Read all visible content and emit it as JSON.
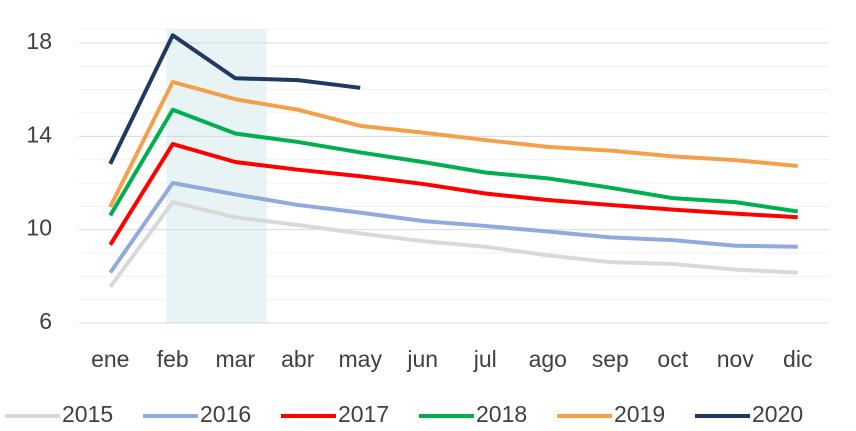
{
  "chart_data": {
    "type": "line",
    "categories": [
      "ene",
      "feb",
      "mar",
      "abr",
      "may",
      "jun",
      "jul",
      "ago",
      "sep",
      "oct",
      "nov",
      "dic"
    ],
    "series": [
      {
        "name": "2015",
        "color": "#d9d9d9",
        "values": [
          7.55,
          11.18,
          10.53,
          10.2,
          9.84,
          9.51,
          9.27,
          8.9,
          8.61,
          8.53,
          8.29,
          8.16
        ]
      },
      {
        "name": "2016",
        "color": "#8faadc",
        "values": [
          8.16,
          12.0,
          11.51,
          11.06,
          10.73,
          10.37,
          10.16,
          9.92,
          9.67,
          9.55,
          9.31,
          9.27
        ]
      },
      {
        "name": "2017",
        "color": "#ff0000",
        "values": [
          9.35,
          13.67,
          12.9,
          12.57,
          12.29,
          11.96,
          11.55,
          11.27,
          11.06,
          10.86,
          10.69,
          10.53
        ]
      },
      {
        "name": "2018",
        "color": "#00b050",
        "values": [
          10.61,
          15.14,
          14.12,
          13.76,
          13.31,
          12.9,
          12.45,
          12.2,
          11.8,
          11.35,
          11.18,
          10.78
        ]
      },
      {
        "name": "2019",
        "color": "#f4a04a",
        "values": [
          10.98,
          16.33,
          15.59,
          15.14,
          14.45,
          14.16,
          13.84,
          13.55,
          13.39,
          13.14,
          12.98,
          12.73
        ]
      },
      {
        "name": "2020",
        "color": "#203864",
        "values": [
          12.82,
          18.33,
          16.49,
          16.41,
          16.08,
          null,
          null,
          null,
          null,
          null,
          null,
          null
        ]
      }
    ],
    "ylim": [
      6,
      18.6
    ],
    "yticks": [
      6,
      10,
      14,
      18
    ],
    "y_minor_ticks": [
      7,
      8,
      9,
      11,
      12,
      13,
      15,
      16,
      17,
      18.6
    ],
    "highlight_range": [
      1,
      2
    ],
    "highlight_color": "#e7f3f5",
    "grid": true,
    "legend": "bottom"
  }
}
